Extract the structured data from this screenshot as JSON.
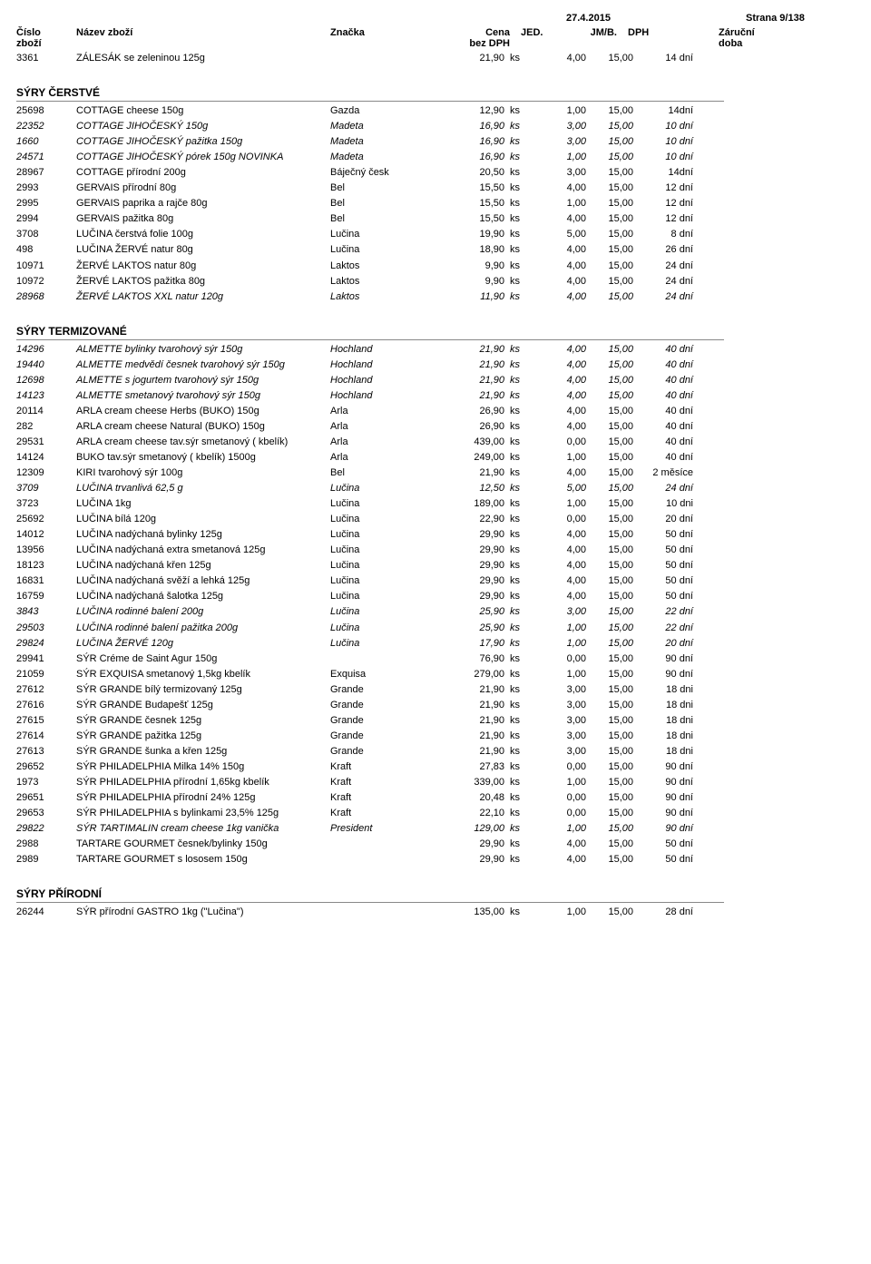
{
  "meta": {
    "date": "27.4.2015",
    "strana": "Strana 9/138"
  },
  "headers": {
    "cislo": "Číslo",
    "zbozi": "zboží",
    "nazev": "Název zboží",
    "znacka": "Značka",
    "cena": "Cena",
    "bezDPH": "bez DPH",
    "jed": "JED.",
    "jmb": "JM/B.",
    "dph": "DPH",
    "zarucni": "Záruční",
    "doba": "doba"
  },
  "topRow": {
    "cislo": "3361",
    "nazev": "ZÁLESÁK se zeleninou 125g",
    "znacka": "",
    "cena": "21,90",
    "jed": "ks",
    "jmb": "4,00",
    "dph": "15,00",
    "doba": "14 dní",
    "italic": false
  },
  "sections": [
    {
      "title": "SÝRY ČERSTVÉ",
      "rows": [
        {
          "cislo": "25698",
          "nazev": "COTTAGE cheese 150g",
          "znacka": "Gazda",
          "cena": "12,90",
          "jed": "ks",
          "jmb": "1,00",
          "dph": "15,00",
          "doba": "14dní",
          "italic": false
        },
        {
          "cislo": "22352",
          "nazev": "COTTAGE JIHOČESKÝ 150g",
          "znacka": "Madeta",
          "cena": "16,90",
          "jed": "ks",
          "jmb": "3,00",
          "dph": "15,00",
          "doba": "10 dní",
          "italic": true
        },
        {
          "cislo": "1660",
          "nazev": "COTTAGE JIHOČESKÝ pažitka 150g",
          "znacka": "Madeta",
          "cena": "16,90",
          "jed": "ks",
          "jmb": "3,00",
          "dph": "15,00",
          "doba": "10 dní",
          "italic": true
        },
        {
          "cislo": "24571",
          "nazev": "COTTAGE JIHOČESKÝ pórek 150g NOVINKA",
          "znacka": "Madeta",
          "cena": "16,90",
          "jed": "ks",
          "jmb": "1,00",
          "dph": "15,00",
          "doba": "10 dní",
          "italic": true
        },
        {
          "cislo": "28967",
          "nazev": "COTTAGE přírodní 200g",
          "znacka": "Báječný česk",
          "cena": "20,50",
          "jed": "ks",
          "jmb": "3,00",
          "dph": "15,00",
          "doba": "14dní",
          "italic": false
        },
        {
          "cislo": "2993",
          "nazev": "GERVAIS  přírodní 80g",
          "znacka": "Bel",
          "cena": "15,50",
          "jed": "ks",
          "jmb": "4,00",
          "dph": "15,00",
          "doba": "12 dní",
          "italic": false
        },
        {
          "cislo": "2995",
          "nazev": "GERVAIS paprika a rajče 80g",
          "znacka": "Bel",
          "cena": "15,50",
          "jed": "ks",
          "jmb": "1,00",
          "dph": "15,00",
          "doba": "12 dní",
          "italic": false
        },
        {
          "cislo": "2994",
          "nazev": "GERVAIS pažitka 80g",
          "znacka": "Bel",
          "cena": "15,50",
          "jed": "ks",
          "jmb": "4,00",
          "dph": "15,00",
          "doba": "12 dní",
          "italic": false
        },
        {
          "cislo": "3708",
          "nazev": "LUČINA   čerstvá folie 100g",
          "znacka": "Lučina",
          "cena": "19,90",
          "jed": "ks",
          "jmb": "5,00",
          "dph": "15,00",
          "doba": "8 dní",
          "italic": false
        },
        {
          "cislo": "498",
          "nazev": "LUČINA ŽERVÉ natur 80g",
          "znacka": "Lučina",
          "cena": "18,90",
          "jed": "ks",
          "jmb": "4,00",
          "dph": "15,00",
          "doba": "26 dní",
          "italic": false
        },
        {
          "cislo": "10971",
          "nazev": "ŽERVÉ LAKTOS natur 80g",
          "znacka": "Laktos",
          "cena": "9,90",
          "jed": "ks",
          "jmb": "4,00",
          "dph": "15,00",
          "doba": "24 dní",
          "italic": false
        },
        {
          "cislo": "10972",
          "nazev": "ŽERVÉ LAKTOS pažitka 80g",
          "znacka": "Laktos",
          "cena": "9,90",
          "jed": "ks",
          "jmb": "4,00",
          "dph": "15,00",
          "doba": "24 dní",
          "italic": false
        },
        {
          "cislo": "28968",
          "nazev": "ŽERVÉ LAKTOS XXL natur 120g",
          "znacka": "Laktos",
          "cena": "11,90",
          "jed": "ks",
          "jmb": "4,00",
          "dph": "15,00",
          "doba": "24 dní",
          "italic": true
        }
      ]
    },
    {
      "title": "SÝRY TERMIZOVANÉ",
      "rows": [
        {
          "cislo": "14296",
          "nazev": "ALMETTE bylinky tvarohový sýr 150g",
          "znacka": "Hochland",
          "cena": "21,90",
          "jed": "ks",
          "jmb": "4,00",
          "dph": "15,00",
          "doba": "40 dní",
          "italic": true
        },
        {
          "cislo": "19440",
          "nazev": "ALMETTE medvědí česnek tvarohový sýr 150g",
          "znacka": "Hochland",
          "cena": "21,90",
          "jed": "ks",
          "jmb": "4,00",
          "dph": "15,00",
          "doba": "40 dní",
          "italic": true
        },
        {
          "cislo": "12698",
          "nazev": "ALMETTE s jogurtem tvarohový sýr 150g",
          "znacka": "Hochland",
          "cena": "21,90",
          "jed": "ks",
          "jmb": "4,00",
          "dph": "15,00",
          "doba": "40 dní",
          "italic": true
        },
        {
          "cislo": "14123",
          "nazev": "ALMETTE smetanový tvarohový sýr 150g",
          "znacka": "Hochland",
          "cena": "21,90",
          "jed": "ks",
          "jmb": "4,00",
          "dph": "15,00",
          "doba": "40 dní",
          "italic": true
        },
        {
          "cislo": "20114",
          "nazev": "ARLA cream cheese Herbs (BUKO) 150g",
          "znacka": "Arla",
          "cena": "26,90",
          "jed": "ks",
          "jmb": "4,00",
          "dph": "15,00",
          "doba": "40 dní",
          "italic": false
        },
        {
          "cislo": "282",
          "nazev": "ARLA cream cheese Natural (BUKO) 150g",
          "znacka": "Arla",
          "cena": "26,90",
          "jed": "ks",
          "jmb": "4,00",
          "dph": "15,00",
          "doba": "40 dní",
          "italic": false
        },
        {
          "cislo": "29531",
          "nazev": "ARLA cream cheese tav.sýr smetanový ( kbelík)",
          "znacka": "Arla",
          "cena": "439,00",
          "jed": "ks",
          "jmb": "0,00",
          "dph": "15,00",
          "doba": "40 dní",
          "italic": false
        },
        {
          "cislo": "14124",
          "nazev": "BUKO tav.sýr smetanový ( kbelík) 1500g",
          "znacka": "Arla",
          "cena": "249,00",
          "jed": "ks",
          "jmb": "1,00",
          "dph": "15,00",
          "doba": "40 dní",
          "italic": false
        },
        {
          "cislo": "12309",
          "nazev": "KIRI  tvarohový sýr 100g",
          "znacka": "Bel",
          "cena": "21,90",
          "jed": "ks",
          "jmb": "4,00",
          "dph": "15,00",
          "doba": "2 měsíce",
          "italic": false
        },
        {
          "cislo": "3709",
          "nazev": "LUČINA  trvanlivá 62,5 g",
          "znacka": "Lučina",
          "cena": "12,50",
          "jed": "ks",
          "jmb": "5,00",
          "dph": "15,00",
          "doba": "24 dní",
          "italic": true
        },
        {
          "cislo": "3723",
          "nazev": "LUČINA 1kg",
          "znacka": "Lučina",
          "cena": "189,00",
          "jed": "ks",
          "jmb": "1,00",
          "dph": "15,00",
          "doba": "10 dni",
          "italic": false
        },
        {
          "cislo": "25692",
          "nazev": "LUČINA bílá 120g",
          "znacka": "Lučina",
          "cena": "22,90",
          "jed": "ks",
          "jmb": "0,00",
          "dph": "15,00",
          "doba": "20 dní",
          "italic": false
        },
        {
          "cislo": "14012",
          "nazev": "LUČINA nadýchaná bylinky 125g",
          "znacka": "Lučina",
          "cena": "29,90",
          "jed": "ks",
          "jmb": "4,00",
          "dph": "15,00",
          "doba": "50 dní",
          "italic": false
        },
        {
          "cislo": "13956",
          "nazev": "LUČINA nadýchaná extra smetanová 125g",
          "znacka": "Lučina",
          "cena": "29,90",
          "jed": "ks",
          "jmb": "4,00",
          "dph": "15,00",
          "doba": "50 dní",
          "italic": false
        },
        {
          "cislo": "18123",
          "nazev": "LUČINA nadýchaná křen 125g",
          "znacka": "Lučina",
          "cena": "29,90",
          "jed": "ks",
          "jmb": "4,00",
          "dph": "15,00",
          "doba": "50 dní",
          "italic": false
        },
        {
          "cislo": "16831",
          "nazev": "LUČINA nadýchaná svěží a lehká 125g",
          "znacka": "Lučina",
          "cena": "29,90",
          "jed": "ks",
          "jmb": "4,00",
          "dph": "15,00",
          "doba": "50 dní",
          "italic": false
        },
        {
          "cislo": "16759",
          "nazev": "LUČINA nadýchaná šalotka 125g",
          "znacka": "Lučina",
          "cena": "29,90",
          "jed": "ks",
          "jmb": "4,00",
          "dph": "15,00",
          "doba": "50 dní",
          "italic": false
        },
        {
          "cislo": "3843",
          "nazev": "LUČINA rodinné balení 200g",
          "znacka": "Lučina",
          "cena": "25,90",
          "jed": "ks",
          "jmb": "3,00",
          "dph": "15,00",
          "doba": "22 dní",
          "italic": true
        },
        {
          "cislo": "29503",
          "nazev": "LUČINA rodinné balení pažitka 200g",
          "znacka": "Lučina",
          "cena": "25,90",
          "jed": "ks",
          "jmb": "1,00",
          "dph": "15,00",
          "doba": "22 dní",
          "italic": true
        },
        {
          "cislo": "29824",
          "nazev": "LUČINA ŽERVÉ 120g",
          "znacka": "Lučina",
          "cena": "17,90",
          "jed": "ks",
          "jmb": "1,00",
          "dph": "15,00",
          "doba": "20 dní",
          "italic": true
        },
        {
          "cislo": "29941",
          "nazev": "SÝR Créme de Saint Agur 150g",
          "znacka": "",
          "cena": "76,90",
          "jed": "ks",
          "jmb": "0,00",
          "dph": "15,00",
          "doba": "90 dní",
          "italic": false
        },
        {
          "cislo": "21059",
          "nazev": "SÝR EXQUISA smetanový 1,5kg  kbelík",
          "znacka": "Exquisa",
          "cena": "279,00",
          "jed": "ks",
          "jmb": "1,00",
          "dph": "15,00",
          "doba": "90 dní",
          "italic": false
        },
        {
          "cislo": "27612",
          "nazev": "SÝR GRANDE bílý termizovaný 125g",
          "znacka": "Grande",
          "cena": "21,90",
          "jed": "ks",
          "jmb": "3,00",
          "dph": "15,00",
          "doba": "18 dni",
          "italic": false
        },
        {
          "cislo": "27616",
          "nazev": "SÝR GRANDE Budapešť 125g",
          "znacka": "Grande",
          "cena": "21,90",
          "jed": "ks",
          "jmb": "3,00",
          "dph": "15,00",
          "doba": "18 dni",
          "italic": false
        },
        {
          "cislo": "27615",
          "nazev": "SÝR GRANDE česnek 125g",
          "znacka": "Grande",
          "cena": "21,90",
          "jed": "ks",
          "jmb": "3,00",
          "dph": "15,00",
          "doba": "18 dni",
          "italic": false
        },
        {
          "cislo": "27614",
          "nazev": "SÝR GRANDE pažitka 125g",
          "znacka": "Grande",
          "cena": "21,90",
          "jed": "ks",
          "jmb": "3,00",
          "dph": "15,00",
          "doba": "18 dni",
          "italic": false
        },
        {
          "cislo": "27613",
          "nazev": "SÝR GRANDE šunka a křen 125g",
          "znacka": "Grande",
          "cena": "21,90",
          "jed": "ks",
          "jmb": "3,00",
          "dph": "15,00",
          "doba": "18 dni",
          "italic": false
        },
        {
          "cislo": "29652",
          "nazev": "SÝR PHILADELPHIA Milka 14% 150g",
          "znacka": "Kraft",
          "cena": "27,83",
          "jed": "ks",
          "jmb": "0,00",
          "dph": "15,00",
          "doba": "90 dní",
          "italic": false
        },
        {
          "cislo": "1973",
          "nazev": "SÝR PHILADELPHIA přírodní 1,65kg kbelík",
          "znacka": "Kraft",
          "cena": "339,00",
          "jed": "ks",
          "jmb": "1,00",
          "dph": "15,00",
          "doba": "90 dní",
          "italic": false
        },
        {
          "cislo": "29651",
          "nazev": "SÝR PHILADELPHIA přírodní 24% 125g",
          "znacka": "Kraft",
          "cena": "20,48",
          "jed": "ks",
          "jmb": "0,00",
          "dph": "15,00",
          "doba": "90 dní",
          "italic": false
        },
        {
          "cislo": "29653",
          "nazev": "SÝR PHILADELPHIA s bylinkami 23,5% 125g",
          "znacka": "Kraft",
          "cena": "22,10",
          "jed": "ks",
          "jmb": "0,00",
          "dph": "15,00",
          "doba": "90 dní",
          "italic": false
        },
        {
          "cislo": "29822",
          "nazev": "SÝR TARTIMALIN cream cheese 1kg vanička",
          "znacka": "President",
          "cena": "129,00",
          "jed": "ks",
          "jmb": "1,00",
          "dph": "15,00",
          "doba": "90 dní",
          "italic": true
        },
        {
          "cislo": "2988",
          "nazev": "TARTARE GOURMET česnek/bylinky 150g",
          "znacka": "",
          "cena": "29,90",
          "jed": "ks",
          "jmb": "4,00",
          "dph": "15,00",
          "doba": "50 dní",
          "italic": false
        },
        {
          "cislo": "2989",
          "nazev": "TARTARE GOURMET s lososem 150g",
          "znacka": "",
          "cena": "29,90",
          "jed": "ks",
          "jmb": "4,00",
          "dph": "15,00",
          "doba": "50 dní",
          "italic": false
        }
      ]
    },
    {
      "title": "SÝRY PŘÍRODNÍ",
      "rows": [
        {
          "cislo": "26244",
          "nazev": "SÝR přírodní GASTRO 1kg (\"Lučina\")",
          "znacka": "",
          "cena": "135,00",
          "jed": "ks",
          "jmb": "1,00",
          "dph": "15,00",
          "doba": "28 dní",
          "italic": false
        }
      ]
    }
  ]
}
